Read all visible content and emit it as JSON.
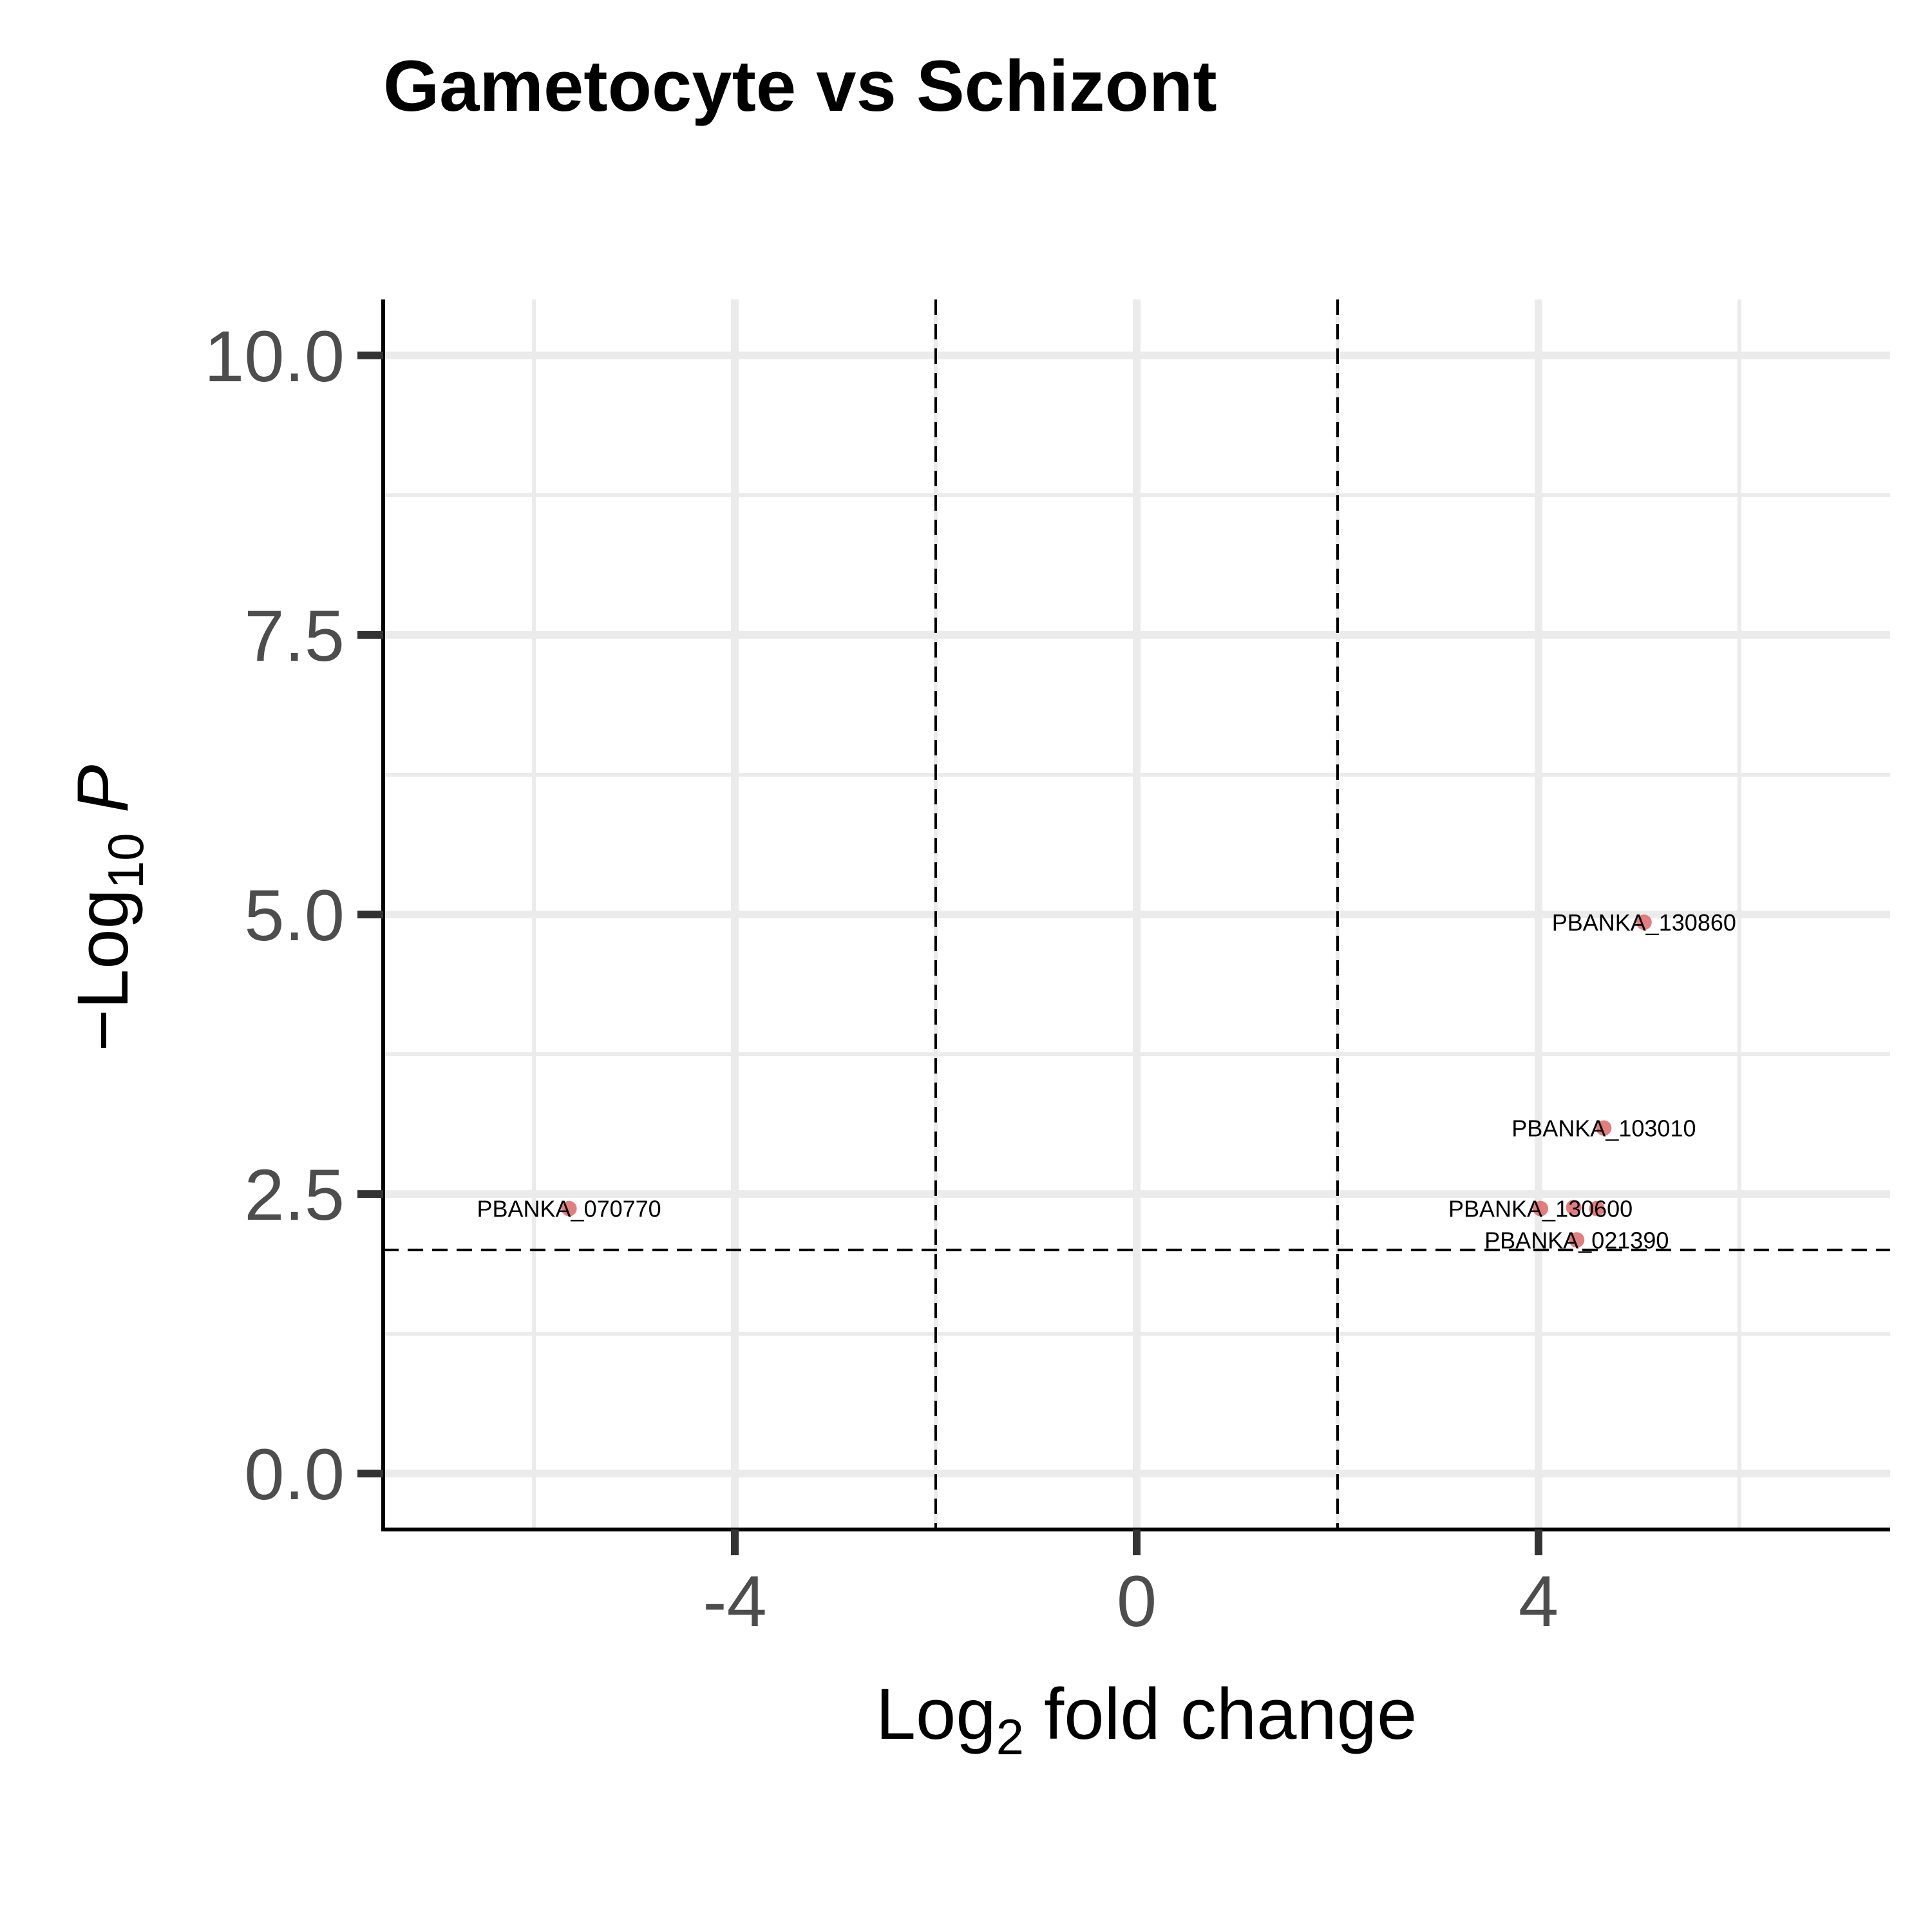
{
  "chart_data": {
    "type": "scatter",
    "title": "Gametocyte vs Schizont",
    "xlabel": {
      "main": "Log",
      "sub": "2",
      "rest": " fold change"
    },
    "ylabel": {
      "prefix": "−Log",
      "sub": "10",
      "var": "P"
    },
    "xlim": [
      -7.5,
      7.5
    ],
    "ylim": [
      -0.5,
      10.5
    ],
    "x_ticks": [
      -4,
      0,
      4
    ],
    "x_tick_labels": [
      "-4",
      "0",
      "4"
    ],
    "y_ticks": [
      0,
      2.5,
      5,
      7.5,
      10
    ],
    "y_tick_labels": [
      "0.0",
      "2.5",
      "5.0",
      "7.5",
      "10.0"
    ],
    "grid": true,
    "thresholds": {
      "log2fc": [
        -2,
        2
      ],
      "neg_log10_p": 2
    },
    "point_color": "#e07070",
    "points": [
      {
        "label": "PBANKA_130860",
        "x": 5.05,
        "y": 4.93
      },
      {
        "label": "PBANKA_103010",
        "x": 4.65,
        "y": 3.09
      },
      {
        "label": "PBANKA_130600",
        "x": 4.02,
        "y": 2.37
      },
      {
        "label": "",
        "x": 4.35,
        "y": 2.38
      },
      {
        "label": "",
        "x": 4.58,
        "y": 2.37
      },
      {
        "label": "PBANKA_021390",
        "x": 4.38,
        "y": 2.09
      },
      {
        "label": "PBANKA_070770",
        "x": -5.65,
        "y": 2.37
      }
    ]
  }
}
